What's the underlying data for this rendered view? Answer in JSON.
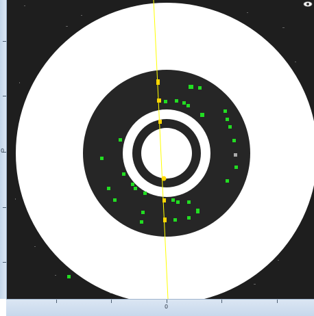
{
  "rulers": {
    "left_zero_label": "0",
    "bottom_zero_label": "0"
  },
  "scene": {
    "background_color": "#1e1e1e",
    "ring_white_color": "#ffffff",
    "ring_dark_color": "#262626",
    "line_color": "#ffff00",
    "point_color": "#22dd22",
    "marker_color": "#ffd700"
  },
  "icons": {
    "eye": "eye-icon"
  }
}
